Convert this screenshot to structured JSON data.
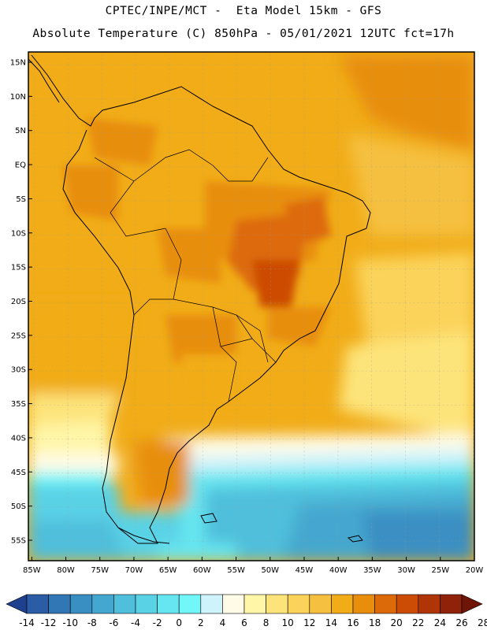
{
  "header": {
    "line1": "CPTEC/INPE/MCT -  Eta Model 15km - GFS",
    "line2": "Absolute Temperature (C) 850hPa - 05/01/2021 12UTC fct=17h"
  },
  "map": {
    "lat_labels": [
      "15N",
      "10N",
      "5N",
      "EQ",
      "5S",
      "10S",
      "15S",
      "20S",
      "25S",
      "30S",
      "35S",
      "40S",
      "45S",
      "50S",
      "55S"
    ],
    "lat_values": [
      15,
      10,
      5,
      0,
      -5,
      -10,
      -15,
      -20,
      -25,
      -30,
      -35,
      -40,
      -45,
      -50,
      -55
    ],
    "lon_labels": [
      "85W",
      "80W",
      "75W",
      "70W",
      "65W",
      "60W",
      "55W",
      "50W",
      "45W",
      "40W",
      "35W",
      "30W",
      "25W",
      "20W"
    ],
    "lon_values": [
      -85,
      -80,
      -75,
      -70,
      -65,
      -60,
      -55,
      -50,
      -45,
      -40,
      -35,
      -30,
      -25,
      -20
    ],
    "extent": {
      "lon_min": -85.5,
      "lon_max": -20,
      "lat_min": -58,
      "lat_max": 16.5
    }
  },
  "colorbar": {
    "labels": [
      "-14",
      "-12",
      "-10",
      "-8",
      "-6",
      "-4",
      "-2",
      "0",
      "2",
      "4",
      "6",
      "8",
      "10",
      "12",
      "14",
      "16",
      "18",
      "20",
      "22",
      "24",
      "26",
      "28"
    ],
    "colors": [
      "#1f3f8f",
      "#2a5da6",
      "#3277b5",
      "#3a8fc2",
      "#44a7cf",
      "#4fbfdc",
      "#5ad2e6",
      "#66e6f0",
      "#72f7f9",
      "#cff3fb",
      "#fffbe6",
      "#fff6a8",
      "#fde47a",
      "#fbd35a",
      "#f5c03f",
      "#f1ac18",
      "#e88e0c",
      "#dd6a08",
      "#cc4c05",
      "#b03506",
      "#8f2208",
      "#6f1508"
    ]
  }
}
